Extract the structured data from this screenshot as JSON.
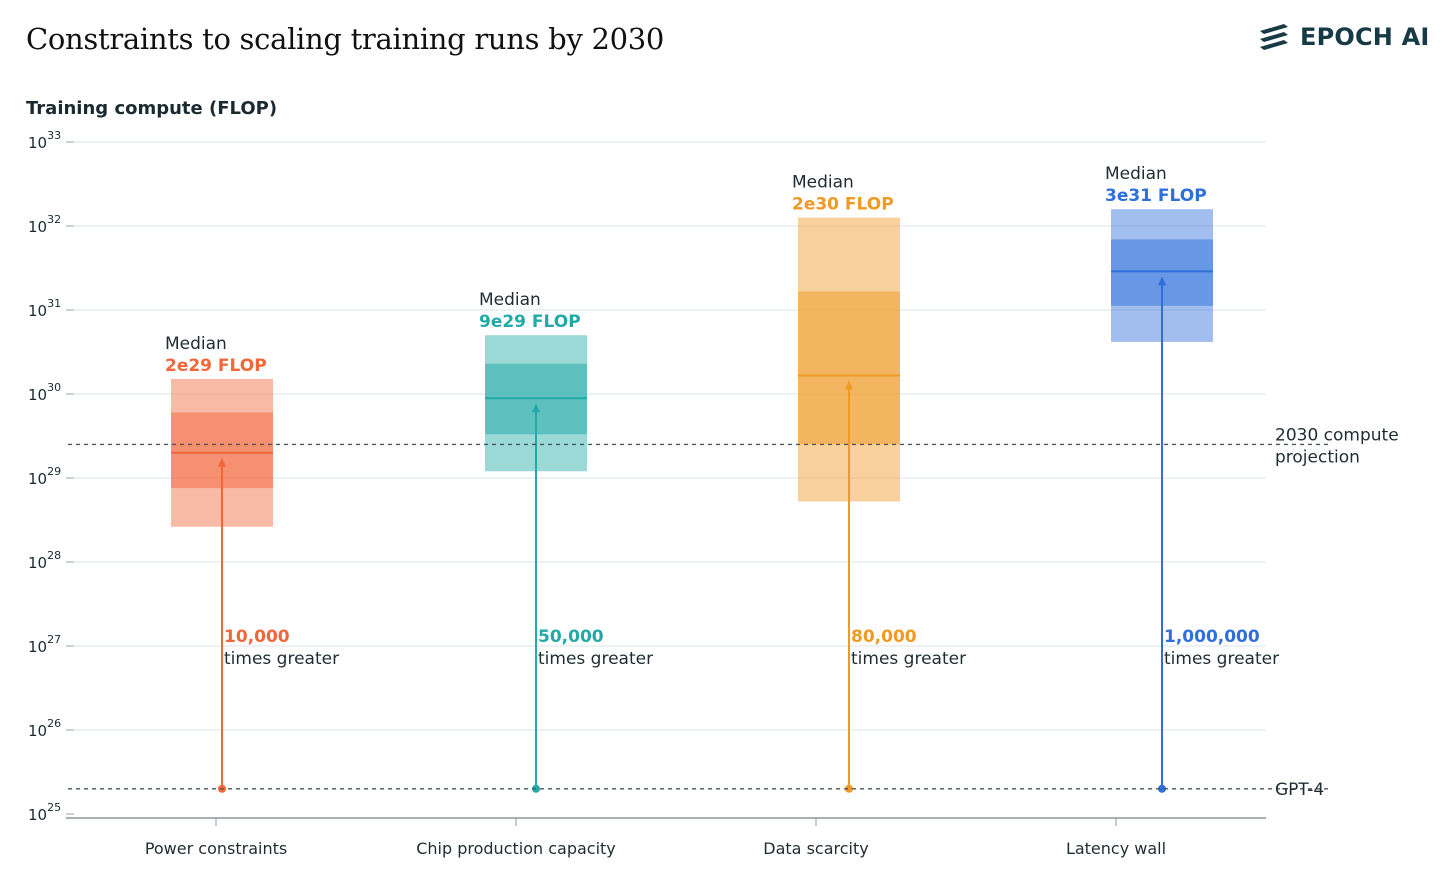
{
  "title": "Constraints to scaling training runs by 2030",
  "brand": {
    "name": "EPOCH AI",
    "icon": "epoch-stripes-logo",
    "color": "#163a46"
  },
  "chart_data": {
    "type": "box",
    "ylabel": "Training compute (FLOP)",
    "yscale": "log",
    "ylim_exponent": [
      25,
      33
    ],
    "ytick_exponents": [
      25,
      26,
      27,
      28,
      29,
      30,
      31,
      32,
      33
    ],
    "ytick_base": "10",
    "grid": true,
    "reference_lines": [
      {
        "name_lines": [
          "2030 compute",
          "projection"
        ],
        "exponent": 29.4
      },
      {
        "name_lines": [
          "GPT-4"
        ],
        "exponent": 25.3
      }
    ],
    "categories": [
      {
        "name": "Power constraints",
        "color": "#f2673a",
        "outer": [
          28.42,
          30.18
        ],
        "inner": [
          28.88,
          29.78
        ],
        "median_exponent": 29.3,
        "median_title": "Median",
        "median_value": "2e29 FLOP",
        "multiplier": "10,000",
        "multiplier_text": "times greater"
      },
      {
        "name": "Chip production capacity",
        "color": "#22aaa7",
        "outer": [
          29.08,
          30.7
        ],
        "inner": [
          29.52,
          30.36
        ],
        "median_exponent": 29.95,
        "median_title": "Median",
        "median_value": "9e29 FLOP",
        "multiplier": "50,000",
        "multiplier_text": "times greater"
      },
      {
        "name": "Data scarcity",
        "color": "#f09a23",
        "outer": [
          28.72,
          32.1
        ],
        "inner": [
          29.4,
          31.22
        ],
        "median_exponent": 30.22,
        "median_title": "Median",
        "median_value": "2e30 FLOP",
        "multiplier": "80,000",
        "multiplier_text": "times greater"
      },
      {
        "name": "Latency wall",
        "color": "#2f6fdb",
        "outer": [
          30.62,
          32.2
        ],
        "inner": [
          31.05,
          31.84
        ],
        "median_exponent": 31.46,
        "median_title": "Median",
        "median_value": "3e31 FLOP",
        "multiplier": "1,000,000",
        "multiplier_text": "times greater"
      }
    ]
  }
}
